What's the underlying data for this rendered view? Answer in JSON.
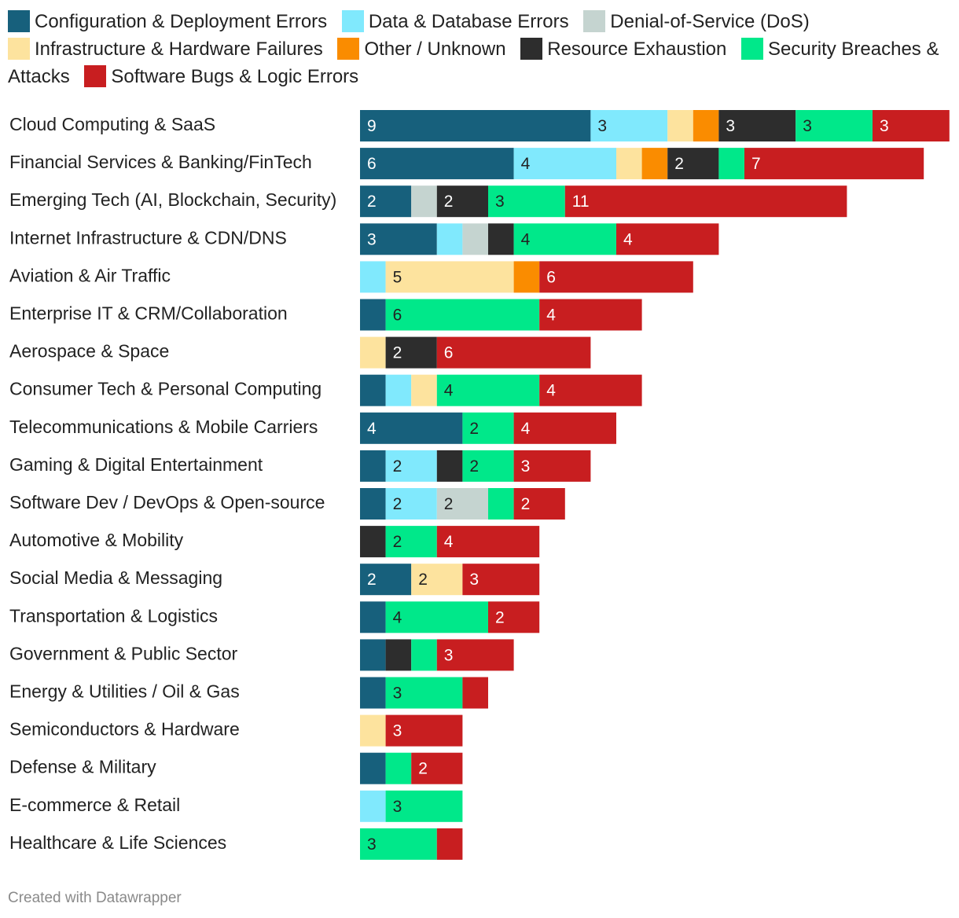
{
  "chart_data": {
    "type": "bar",
    "orientation": "horizontal",
    "stacked": true,
    "legend_position": "top",
    "categories": [
      "Cloud Computing & SaaS",
      "Financial Services & Banking/FinTech",
      "Emerging Tech (AI, Blockchain, Security)",
      "Internet Infrastructure & CDN/DNS",
      "Aviation & Air Traffic",
      "Enterprise IT & CRM/Collaboration",
      "Aerospace & Space",
      "Consumer Tech & Personal Computing",
      "Telecommunications & Mobile Carriers",
      "Gaming & Digital Entertainment",
      "Software Dev / DevOps & Open-source",
      "Automotive & Mobility",
      "Social Media & Messaging",
      "Transportation & Logistics",
      "Government & Public Sector",
      "Energy & Utilities / Oil & Gas",
      "Semiconductors & Hardware",
      "Defense & Military",
      "E-commerce & Retail",
      "Healthcare & Life Sciences"
    ],
    "series": [
      {
        "name": "Configuration & Deployment Errors",
        "color": "#17607c",
        "values": [
          9,
          6,
          2,
          3,
          0,
          1,
          0,
          1,
          4,
          1,
          1,
          0,
          2,
          1,
          1,
          1,
          0,
          1,
          0,
          0
        ]
      },
      {
        "name": "Data & Database Errors",
        "color": "#80e9fd",
        "values": [
          3,
          4,
          0,
          1,
          1,
          0,
          0,
          1,
          0,
          2,
          2,
          0,
          0,
          0,
          0,
          0,
          0,
          0,
          1,
          0
        ]
      },
      {
        "name": "Denial-of-Service (DoS)",
        "color": "#c5d4d0",
        "values": [
          0,
          0,
          1,
          1,
          0,
          0,
          0,
          0,
          0,
          0,
          2,
          0,
          0,
          0,
          0,
          0,
          0,
          0,
          0,
          0
        ]
      },
      {
        "name": "Infrastructure & Hardware Failures",
        "color": "#fde39e",
        "values": [
          1,
          1,
          0,
          0,
          5,
          0,
          1,
          1,
          0,
          0,
          0,
          0,
          2,
          0,
          0,
          0,
          1,
          0,
          0,
          0
        ]
      },
      {
        "name": "Other / Unknown",
        "color": "#fa8c00",
        "values": [
          1,
          1,
          0,
          0,
          1,
          0,
          0,
          0,
          0,
          0,
          0,
          0,
          0,
          0,
          0,
          0,
          0,
          0,
          0,
          0
        ]
      },
      {
        "name": "Resource Exhaustion",
        "color": "#2d2d2d",
        "values": [
          3,
          2,
          2,
          1,
          0,
          0,
          2,
          0,
          0,
          1,
          0,
          1,
          0,
          0,
          1,
          0,
          0,
          0,
          0,
          0
        ]
      },
      {
        "name": "Security Breaches & Attacks",
        "color": "#00e88a",
        "values": [
          3,
          1,
          3,
          4,
          0,
          6,
          0,
          4,
          2,
          2,
          1,
          2,
          0,
          4,
          1,
          3,
          0,
          1,
          3,
          3
        ]
      },
      {
        "name": "Software Bugs & Logic Errors",
        "color": "#c81e20",
        "values": [
          3,
          7,
          11,
          4,
          6,
          4,
          6,
          4,
          4,
          3,
          2,
          4,
          3,
          2,
          3,
          1,
          3,
          2,
          0,
          1
        ]
      }
    ],
    "value_labels_min": 2,
    "footer": "Created with Datawrapper"
  }
}
